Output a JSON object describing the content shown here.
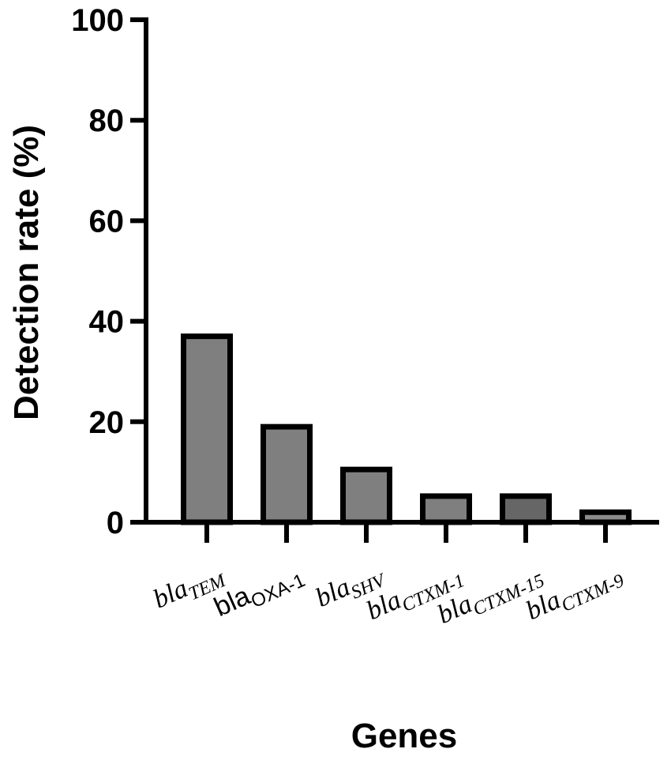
{
  "chart_data": {
    "type": "bar",
    "ylabel": "Detection rate (%)",
    "xlabel": "Genes",
    "ylim": [
      0,
      100
    ],
    "yticks": [
      "0",
      "20",
      "40",
      "60",
      "80",
      "100"
    ],
    "grid": false,
    "categories": [
      {
        "base": "bla",
        "sub": "TEM",
        "style": "italic"
      },
      {
        "base": "bla",
        "sub": "OXA-1",
        "style": "plain"
      },
      {
        "base": "bla",
        "sub": "SHV",
        "style": "italic"
      },
      {
        "base": "bla",
        "sub": "CTXM-1",
        "style": "italic"
      },
      {
        "base": "bla",
        "sub": "CTXM-15",
        "style": "italic"
      },
      {
        "base": "bla",
        "sub": "CTXM-9",
        "style": "italic"
      }
    ],
    "values": [
      37,
      19,
      10.5,
      5.2,
      5.2,
      2
    ],
    "colors": [
      "#7f7f7f",
      "#7f7f7f",
      "#7f7f7f",
      "#7f7f7f",
      "#666666",
      "#8c8c8c"
    ]
  }
}
